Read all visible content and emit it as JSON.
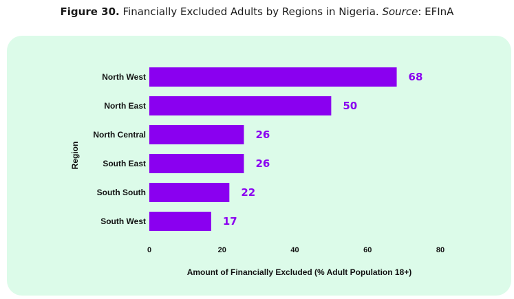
{
  "figure_title": {
    "label": "Figure 30.",
    "text": "Financially Excluded Adults by Regions in Nigeria.",
    "source_label": "Source",
    "source_value": ": EFInA"
  },
  "colors": {
    "bar": "#8a00f0",
    "label": "#8a00f0",
    "panel": "#dcfbe9"
  },
  "chart_data": {
    "type": "bar",
    "orientation": "horizontal",
    "categories": [
      "North West",
      "North East",
      "North Central",
      "South East",
      "South South",
      "South West"
    ],
    "values": [
      68,
      50,
      26,
      26,
      22,
      17
    ],
    "xlabel": "Amount of Financially Excluded (% Adult Population 18+)",
    "ylabel": "Region",
    "xlim": [
      0,
      80
    ],
    "xticks": [
      0,
      20,
      40,
      60,
      80
    ],
    "grid": false,
    "data_labels": true
  }
}
